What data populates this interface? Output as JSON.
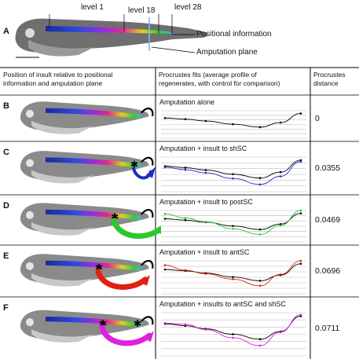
{
  "panel_a": {
    "letter": "A",
    "labels": {
      "level_1": "level 1",
      "level_18": "level 18",
      "level_28": "level 28",
      "positional_information": "Positional information",
      "amputation_plane": "Amputation plane"
    }
  },
  "table": {
    "headers": {
      "col1": [
        "Position of insult relative to positional",
        "information and amputation plane"
      ],
      "col2": [
        "Procrustes  fits  (average profile of",
        "regenerates, with control for comparison)"
      ],
      "col3": [
        "Procrustes",
        "distance"
      ]
    },
    "rows": [
      {
        "letter": "B",
        "title": "Amputation alone",
        "distance": "0",
        "color": "#000000"
      },
      {
        "letter": "C",
        "title": "Amputation + insult to shSC",
        "distance": "0.0355",
        "color": "#1f2fbf"
      },
      {
        "letter": "D",
        "title": "Amputation + insult to postSC",
        "distance": "0.0469",
        "color": "#2cc82c"
      },
      {
        "letter": "E",
        "title": "Amputation + insult to antSC",
        "distance": "0.0696",
        "color": "#e02010"
      },
      {
        "letter": "F",
        "title": "Amputation + insults to antSC and shSC",
        "distance": "0.0711",
        "color": "#e020e0"
      }
    ]
  }
}
